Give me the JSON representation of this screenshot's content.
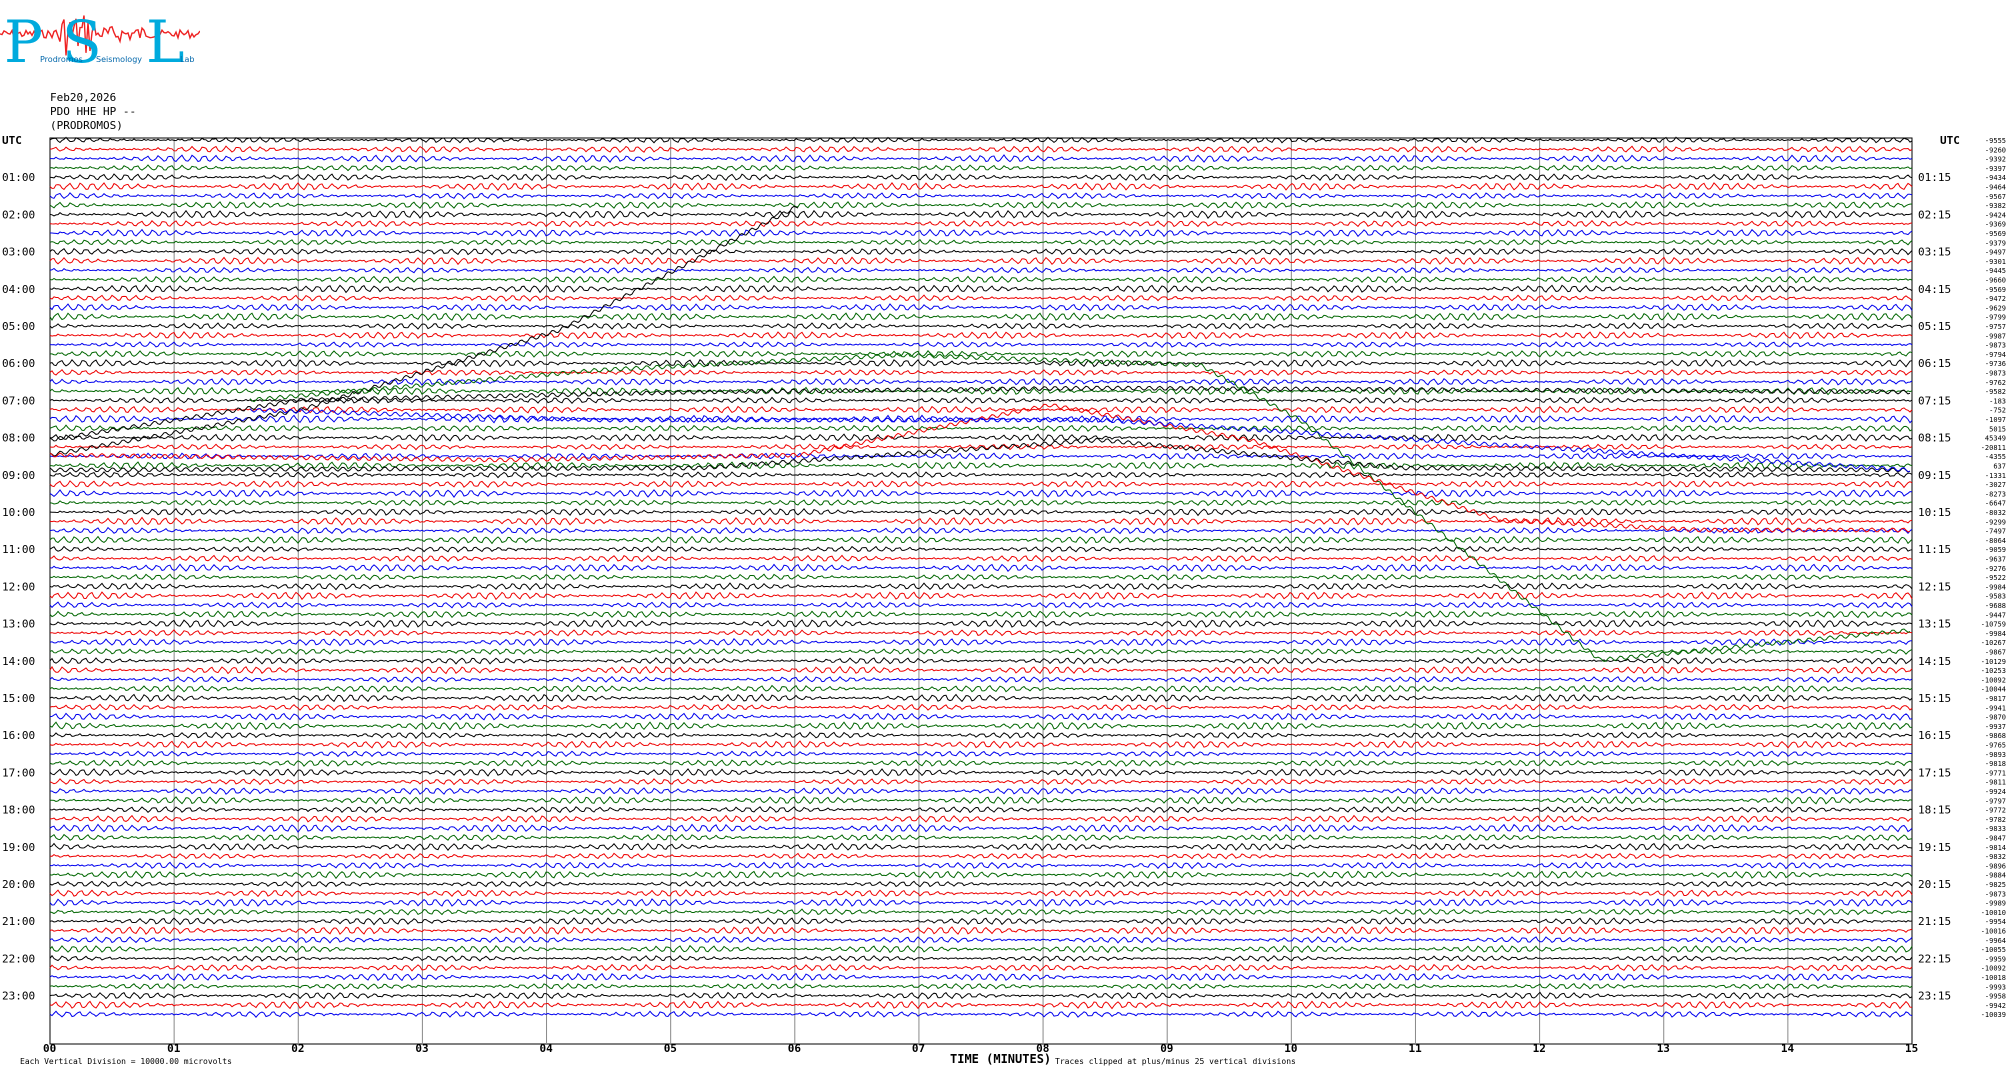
{
  "logo": {
    "letters": [
      "P",
      "S",
      "L"
    ],
    "words": [
      "Prodromos",
      "Seismology",
      "Lab"
    ],
    "colors": {
      "letters": "#00aadd",
      "trace": "#ee2222"
    }
  },
  "header": {
    "date": "Feb20,2026",
    "station": "PDO HHE HP --",
    "location": "(PRODROMOS)"
  },
  "chart_data": {
    "type": "line",
    "title": "",
    "xlabel": "TIME (MINUTES)",
    "left_axis_label": "UTC",
    "right_axis_label": "UTC",
    "x_ticks": [
      "00",
      "01",
      "02",
      "03",
      "04",
      "05",
      "06",
      "07",
      "08",
      "09",
      "10",
      "11",
      "12",
      "13",
      "14",
      "15"
    ],
    "xlim": [
      0,
      15
    ],
    "left_hour_labels": [
      "01:00",
      "02:00",
      "03:00",
      "04:00",
      "05:00",
      "06:00",
      "07:00",
      "08:00",
      "09:00",
      "10:00",
      "11:00",
      "12:00",
      "13:00",
      "14:00",
      "15:00",
      "16:00",
      "17:00",
      "18:00",
      "19:00",
      "20:00",
      "21:00",
      "22:00",
      "23:00"
    ],
    "right_hour_labels": [
      "01:15",
      "02:15",
      "03:15",
      "04:15",
      "05:15",
      "06:15",
      "07:15",
      "08:15",
      "09:15",
      "10:15",
      "11:15",
      "12:15",
      "13:15",
      "14:15",
      "15:15",
      "16:15",
      "17:15",
      "18:15",
      "19:15",
      "20:15",
      "21:15",
      "22:15",
      "23:15"
    ],
    "trace_colors": [
      "#000000",
      "#ee0000",
      "#0000ee",
      "#006600"
    ],
    "trace_offsets": [
      "-9555",
      "-9260",
      "-9392",
      "-9397",
      "-9434",
      "-9464",
      "-9567",
      "-9382",
      "-9424",
      "-9369",
      "-9569",
      "-9379",
      "-9497",
      "-9301",
      "-9445",
      "-9660",
      "-9569",
      "-9472",
      "-9629",
      "-9799",
      "-9757",
      "-9987",
      "-9873",
      "-9794",
      "-9736",
      "-9873",
      "-9762",
      "-9582",
      "-183",
      "-752",
      "-1097",
      "5015",
      "45349",
      "-20811",
      "-4355",
      "637",
      "-1331",
      "-3027",
      "-8273",
      "-6647",
      "-8032",
      "-9299",
      "-7497",
      "-8064",
      "-9059",
      "-9637",
      "-9276",
      "-9522",
      "-9984",
      "-9583",
      "-9688",
      "-9447",
      "-10759",
      "-9984",
      "-10267",
      "-9867",
      "-10129",
      "-10253",
      "-10092",
      "-10044",
      "-9817",
      "-9941",
      "-9870",
      "-9937",
      "-9868",
      "-9765",
      "-9893",
      "-9818",
      "-9771",
      "-9811",
      "-9924",
      "-9797",
      "-9772",
      "-9782",
      "-9833",
      "-9847",
      "-9814",
      "-9832",
      "-9896",
      "-9884",
      "-9825",
      "-9873",
      "-9989",
      "-10010",
      "-9954",
      "-10016",
      "-9964",
      "-10055",
      "-9959",
      "-10092",
      "-10018",
      "-9993",
      "-9958",
      "-9942",
      "-10039"
    ],
    "footer_left": "Each Vertical Division = 10000.00 microvolts",
    "footer_right": "Traces clipped at plus/minus 25 vertical divisions",
    "clip_divisions": 25,
    "grid": true
  }
}
